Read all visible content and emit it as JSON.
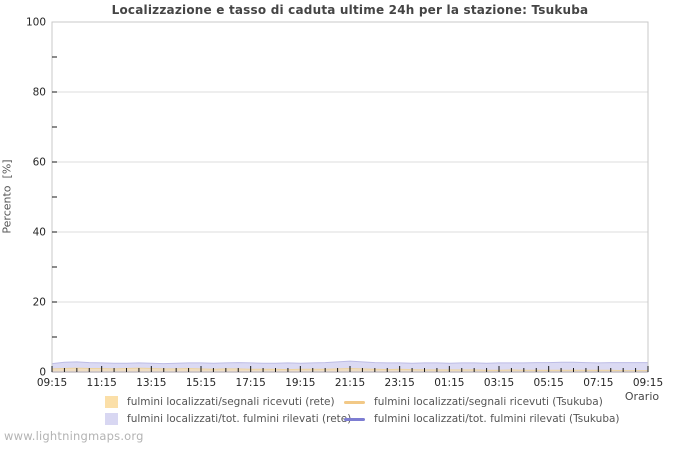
{
  "page": {
    "watermark": "www.lightningmaps.org"
  },
  "chart_data": {
    "type": "area",
    "title": "Localizzazione e tasso di caduta ultime 24h per la stazione: Tsukuba",
    "xlabel": "Orario",
    "ylabel": "Percento  [%]",
    "ylim": [
      0,
      100
    ],
    "y_major_ticks": [
      0,
      20,
      40,
      60,
      80,
      100
    ],
    "y_minor_ticks": [
      10,
      30,
      50,
      70,
      90
    ],
    "grid": "horizontal-major",
    "legend_position": "bottom",
    "x_major_every": 4,
    "x": [
      "09:15",
      "09:45",
      "10:15",
      "10:45",
      "11:15",
      "11:45",
      "12:15",
      "12:45",
      "13:15",
      "13:45",
      "14:15",
      "14:45",
      "15:15",
      "15:45",
      "16:15",
      "16:45",
      "17:15",
      "17:45",
      "18:15",
      "18:45",
      "19:15",
      "19:45",
      "20:15",
      "20:45",
      "21:15",
      "21:45",
      "22:15",
      "22:45",
      "23:15",
      "23:45",
      "00:15",
      "00:45",
      "01:15",
      "01:45",
      "02:15",
      "02:45",
      "03:15",
      "03:45",
      "04:15",
      "04:45",
      "05:15",
      "05:45",
      "06:15",
      "06:45",
      "07:15",
      "07:45",
      "08:15",
      "08:45",
      "09:15"
    ],
    "x_major_labels": [
      "09:15",
      "11:15",
      "13:15",
      "15:15",
      "17:15",
      "19:15",
      "21:15",
      "23:15",
      "01:15",
      "03:15",
      "05:15",
      "07:15",
      "09:15"
    ],
    "series": [
      {
        "name": "fulmini localizzati/segnali ricevuti (rete)",
        "type": "area",
        "color": "#fbdfa8",
        "edge": "#edd3a0",
        "opacity": 0.65,
        "values": [
          0.9,
          1.0,
          1.1,
          1.0,
          1.0,
          0.9,
          1.0,
          1.1,
          1.0,
          0.9,
          0.9,
          1.0,
          0.9,
          0.8,
          0.9,
          0.9,
          0.8,
          0.8,
          0.8,
          0.7,
          0.8,
          0.8,
          0.8,
          0.9,
          1.0,
          0.9,
          0.8,
          0.7,
          0.8,
          0.7,
          0.6,
          0.6,
          0.6,
          0.6,
          0.6,
          0.5,
          0.5,
          0.6,
          0.5,
          0.5,
          0.5,
          0.5,
          0.5,
          0.5,
          0.5,
          0.5,
          0.4,
          0.4,
          0.4
        ]
      },
      {
        "name": "fulmini localizzati/tot. fulmini rilevati (rete)",
        "type": "area",
        "color": "#d8d7f2",
        "edge": "#bdbce6",
        "opacity": 0.92,
        "values": [
          2.4,
          2.8,
          2.9,
          2.7,
          2.6,
          2.5,
          2.5,
          2.6,
          2.5,
          2.4,
          2.5,
          2.6,
          2.6,
          2.5,
          2.6,
          2.7,
          2.6,
          2.5,
          2.5,
          2.6,
          2.5,
          2.6,
          2.7,
          2.9,
          3.1,
          2.9,
          2.7,
          2.6,
          2.6,
          2.5,
          2.6,
          2.6,
          2.5,
          2.6,
          2.6,
          2.5,
          2.6,
          2.6,
          2.6,
          2.7,
          2.7,
          2.8,
          2.8,
          2.7,
          2.6,
          2.7,
          2.7,
          2.7,
          2.7
        ]
      },
      {
        "name": "fulmini localizzati/segnali ricevuti (Tsukuba)",
        "type": "line",
        "color": "#f2c987",
        "values": [
          0,
          0,
          0,
          0,
          0,
          0,
          0,
          0,
          0,
          0,
          0,
          0,
          0,
          0,
          0,
          0,
          0,
          0,
          0,
          0,
          0,
          0,
          0,
          0,
          0,
          0,
          0,
          0,
          0,
          0,
          0,
          0,
          0,
          0,
          0,
          0,
          0,
          0,
          0,
          0,
          0,
          0,
          0,
          0,
          0,
          0,
          0,
          0,
          0
        ]
      },
      {
        "name": "fulmini localizzati/tot. fulmini rilevati (Tsukuba)",
        "type": "line",
        "color": "#7d7dd2",
        "values": [
          0,
          0,
          0,
          0,
          0,
          0,
          0,
          0,
          0,
          0,
          0,
          0,
          0,
          0,
          0,
          0,
          0,
          0,
          0,
          0,
          0,
          0,
          0,
          0,
          0,
          0,
          0,
          0,
          0,
          0,
          0,
          0,
          0,
          0,
          0,
          0,
          0,
          0,
          0,
          0,
          0,
          0,
          0,
          0,
          0,
          0,
          0,
          0,
          0
        ]
      }
    ]
  }
}
